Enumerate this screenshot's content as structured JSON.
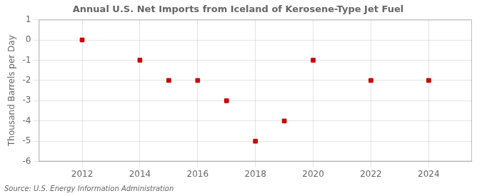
{
  "chart_data": {
    "type": "scatter",
    "title": "Annual U.S. Net Imports from Iceland of Kerosene-Type Jet Fuel",
    "ylabel": "Thousand Barrels per Day",
    "annotations": [
      "Source: U.S. Energy Information Administration"
    ],
    "x": [
      2012,
      2014,
      2015,
      2016,
      2017,
      2018,
      2019,
      2020,
      2022,
      2024
    ],
    "values": [
      0,
      -1,
      -2,
      -2,
      -3,
      -5,
      -4,
      -1,
      -2,
      -2
    ],
    "color": "#cc0000",
    "marker": "square",
    "xlim": [
      2010.5,
      2025.5
    ],
    "ylim": [
      -6,
      1
    ],
    "xticks": [
      2012,
      2014,
      2016,
      2018,
      2020,
      2022,
      2024
    ],
    "yticks": [
      -6,
      -5,
      -4,
      -3,
      -2,
      -1,
      0,
      1
    ],
    "grid": true
  }
}
